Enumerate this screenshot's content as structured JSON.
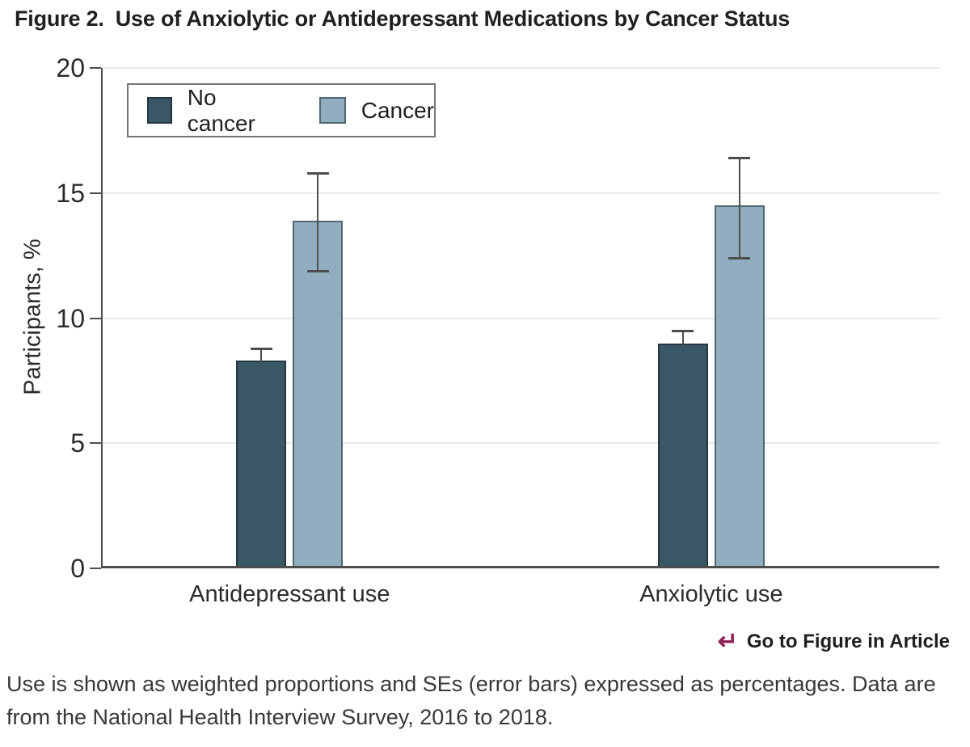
{
  "header": {
    "label": "Figure 2.",
    "title": "Use of Anxiolytic or Antidepressant Medications by Cancer Status"
  },
  "footer": {
    "arrow": "↵",
    "go_to_figure": "Go to Figure in Article",
    "caption": "Use is shown as weighted proportions and SEs (error bars) expressed as percentages. Data are from the National Health Interview Survey, 2016 to 2018."
  },
  "chart_data": {
    "type": "bar",
    "title": "Use of Anxiolytic or Antidepressant Medications by Cancer Status",
    "ylabel": "Participants, %",
    "ylim": [
      0,
      20
    ],
    "yticks": [
      0,
      5,
      10,
      15,
      20
    ],
    "grid": true,
    "legend_position": "top-left inside plot area",
    "categories": [
      "Antidepressant use",
      "Anxiolytic use"
    ],
    "series": [
      {
        "name": "No cancer",
        "color": "#3a5766",
        "border_color": "#243741",
        "values": [
          8.2,
          8.9
        ],
        "err_high": [
          8.8,
          9.5
        ],
        "err_low": [
          8.2,
          8.9
        ]
      },
      {
        "name": "Cancer",
        "color": "#90aebf",
        "border_color": "#506771",
        "values": [
          13.8,
          14.4
        ],
        "err_high": [
          15.8,
          16.4
        ],
        "err_low": [
          11.9,
          12.4
        ]
      }
    ],
    "colors": {
      "axis": "#4d4d4d",
      "grid": "#e9e9e9",
      "error_bar": "#4d4d4d",
      "link_accent": "#91215a"
    }
  }
}
